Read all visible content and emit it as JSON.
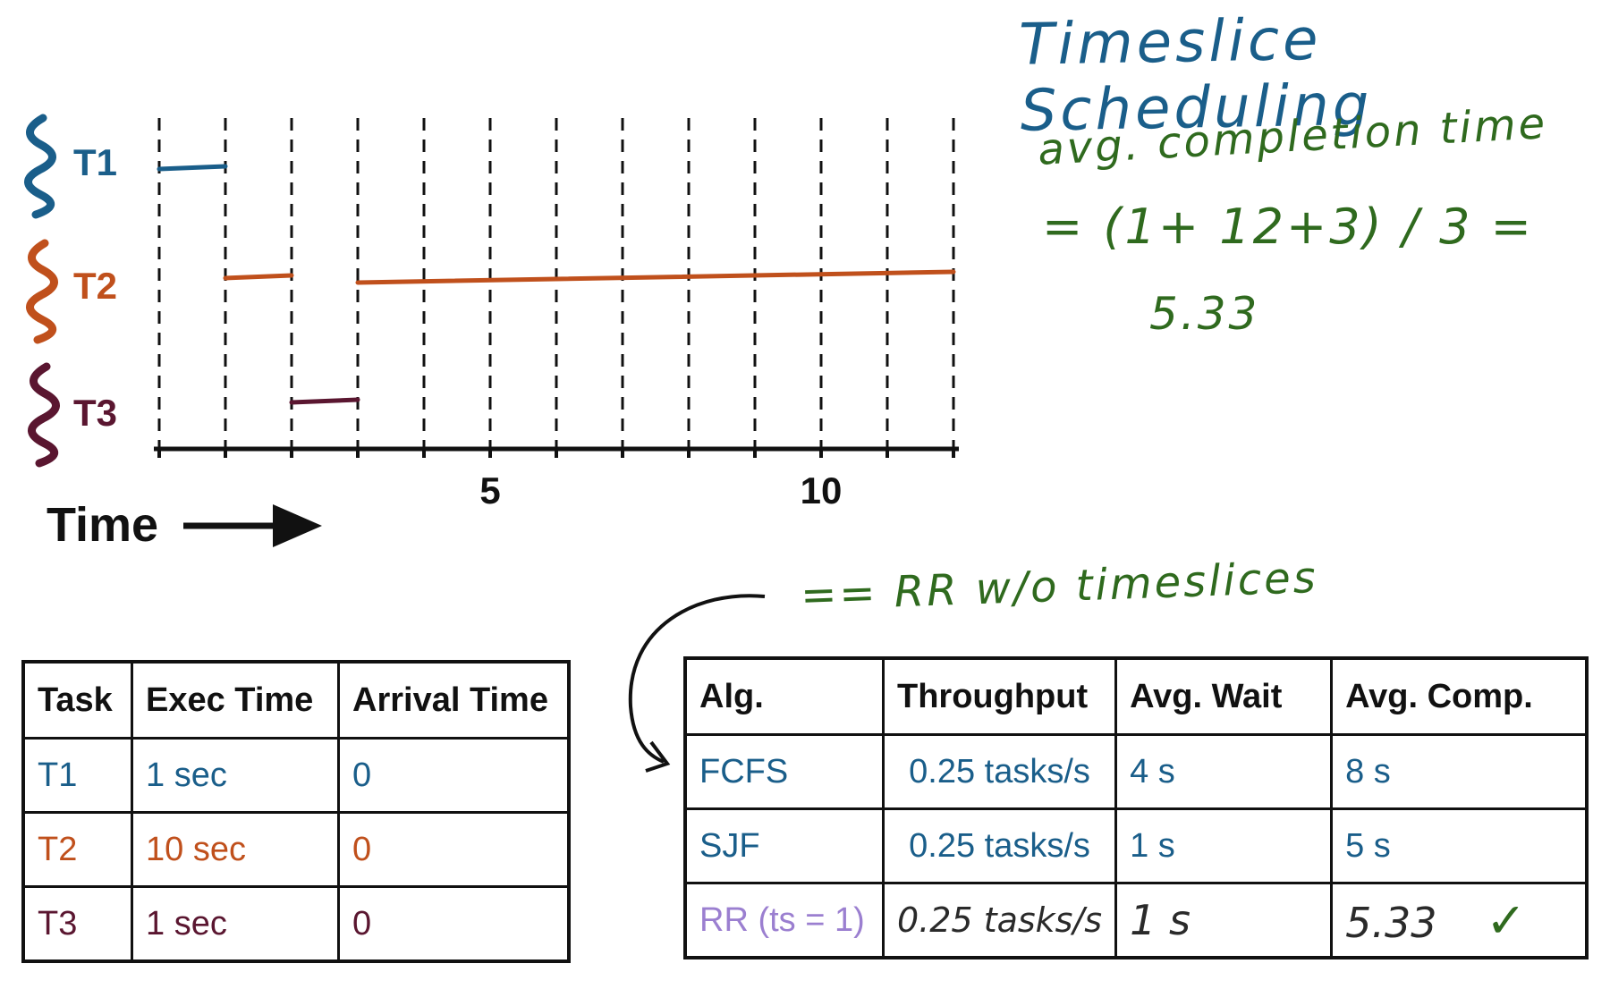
{
  "title": "Timeslice Scheduling",
  "notes": {
    "line1": "avg. completion time",
    "line2": "= (1+ 12+3) / 3 =",
    "line3": "5.33",
    "rr_note": "== RR w/o timeslices"
  },
  "timeline": {
    "tasks": [
      {
        "name": "T1",
        "color": "#1a5e8a",
        "segments": [
          [
            0,
            1
          ]
        ]
      },
      {
        "name": "T2",
        "color": "#c0501c",
        "segments": [
          [
            1,
            2
          ],
          [
            3,
            12
          ]
        ]
      },
      {
        "name": "T3",
        "color": "#5a1630",
        "segments": [
          [
            2,
            3
          ]
        ]
      }
    ],
    "x_range": [
      0,
      12
    ],
    "tick_labels": [
      {
        "value": 5,
        "label": "5"
      },
      {
        "value": 10,
        "label": "10"
      }
    ],
    "axis_label": "Time"
  },
  "task_table": {
    "headers": [
      "Task",
      "Exec Time",
      "Arrival Time"
    ],
    "rows": [
      {
        "task": "T1",
        "exec": "1 sec",
        "arrival": "0"
      },
      {
        "task": "T2",
        "exec": "10 sec",
        "arrival": "0"
      },
      {
        "task": "T3",
        "exec": "1 sec",
        "arrival": "0"
      }
    ]
  },
  "alg_table": {
    "headers": [
      "Alg.",
      "Throughput",
      "Avg. Wait",
      "Avg. Comp."
    ],
    "rows": [
      {
        "alg": "FCFS",
        "throughput": "0.25 tasks/s",
        "wait": "4 s",
        "comp": "8 s"
      },
      {
        "alg": "SJF",
        "throughput": "0.25 tasks/s",
        "wait": "1 s",
        "comp": "5 s"
      },
      {
        "alg": "RR (ts = 1)",
        "throughput": "0.25 tasks/s",
        "wait": "1 s",
        "comp": "5.33",
        "mark": "✓"
      }
    ]
  },
  "colors": {
    "t1": "#1a5e8a",
    "t2": "#c0501c",
    "t3": "#5a1630",
    "rr": "#9b7fd0",
    "notes": "#2f6a1e"
  }
}
